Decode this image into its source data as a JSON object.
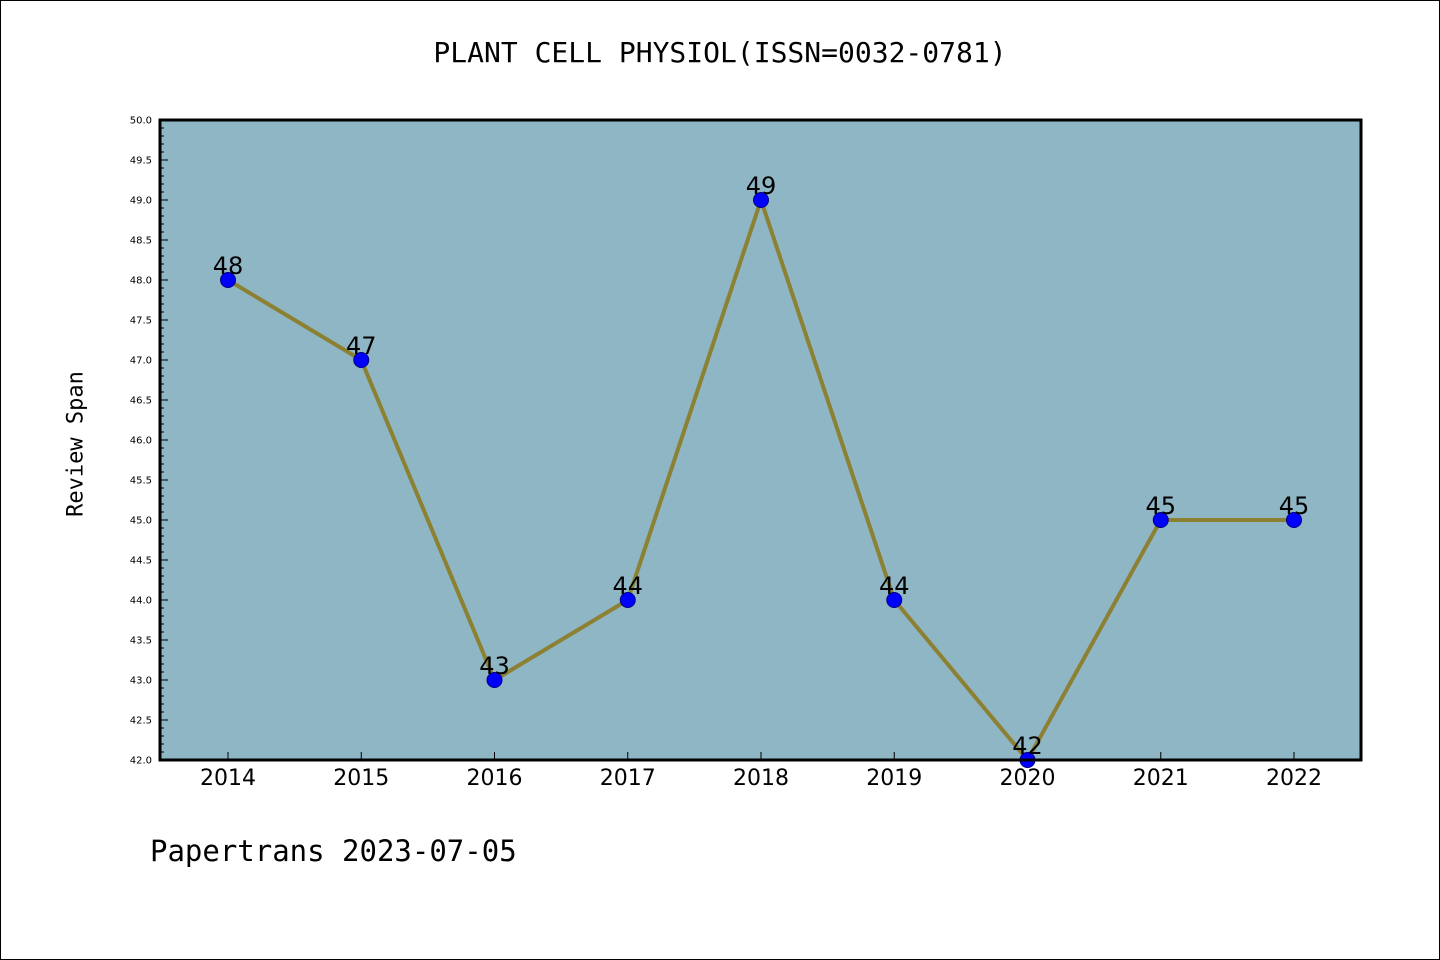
{
  "chart_data": {
    "type": "line",
    "title": "PLANT CELL PHYSIOL(ISSN=0032-0781)",
    "xlabel": "",
    "ylabel": "Review Span",
    "categories": [
      "2014",
      "2015",
      "2016",
      "2017",
      "2018",
      "2019",
      "2020",
      "2021",
      "2022"
    ],
    "series": [
      {
        "values": [
          48,
          47,
          43,
          44,
          49,
          44,
          42,
          45,
          45
        ]
      }
    ],
    "ylim": [
      42.0,
      50.0
    ],
    "yticks": [
      "42.0",
      "42.5",
      "43.0",
      "43.5",
      "44.0",
      "44.5",
      "45.0",
      "45.5",
      "46.0",
      "46.5",
      "47.0",
      "47.5",
      "48.0",
      "48.5",
      "49.0",
      "49.5",
      "50.0"
    ],
    "grid": false,
    "legend": "none",
    "colors": {
      "plot_background": "#8fb6c4",
      "line": "#8c8132",
      "marker": "#0000ff",
      "marker_edge": "#000080"
    }
  },
  "footer": {
    "text": "Papertrans 2023-07-05"
  }
}
